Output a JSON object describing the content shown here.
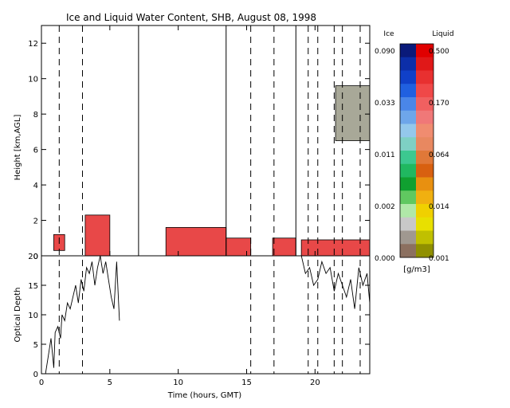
{
  "chart_data": [
    {
      "type": "heatmap",
      "title": "Ice and Liquid Water Content, SHB, August 08, 1998",
      "ylabel": "Height [km,AGL]",
      "ylim": [
        0,
        13
      ],
      "yticks": [
        "0",
        "2",
        "4",
        "6",
        "8",
        "10",
        "12"
      ],
      "xlim": [
        0,
        24
      ],
      "colorbars": {
        "ice_label": "Ice",
        "liquid_label": "Liquid",
        "unit": "[g/m3]",
        "ice_ticks": [
          "0.090",
          "0.033",
          "0.011",
          "0.002",
          "0.000"
        ],
        "liquid_ticks": [
          "0.500",
          "0.170",
          "0.064",
          "0.014",
          "0.001"
        ],
        "colors": [
          "#0a1a7a",
          "#0c2ea8",
          "#1040c8",
          "#2060e0",
          "#4a86e8",
          "#6ea6ea",
          "#94c8ec",
          "#7ed0c4",
          "#3cc890",
          "#20b860",
          "#10a030",
          "#60c860",
          "#b0e8a8",
          "#c8c8c8",
          "#a09890",
          "#8c7060"
        ],
        "liquid_colors": [
          "#e00000",
          "#e01818",
          "#e83030",
          "#f04848",
          "#f06060",
          "#f07878",
          "#f08c70",
          "#e88860",
          "#e07838",
          "#d86010",
          "#e89010",
          "#f0b010",
          "#f0d000",
          "#e8e000",
          "#c0c000",
          "#909000"
        ]
      },
      "series": [
        {
          "name": "liquid_layers",
          "color": "#e84848",
          "values": [
            [
              0.9,
              1.7,
              0.3,
              1.2
            ],
            [
              3.2,
              5.0,
              0.0,
              2.3
            ],
            [
              9.1,
              13.5,
              0.0,
              1.6
            ],
            [
              13.5,
              15.3,
              0.0,
              1.0
            ],
            [
              16.9,
              18.6,
              0.0,
              1.0
            ],
            [
              19.0,
              24,
              0.0,
              0.9
            ]
          ]
        },
        {
          "name": "ice_cloud",
          "color": "#a8a898",
          "values": [
            [
              21.5,
              24,
              6.5,
              9.6
            ]
          ]
        }
      ],
      "markers_x": [
        1.3,
        3.0,
        15.3,
        17.0,
        19.5,
        20.2,
        21.4,
        22.0,
        23.3
      ],
      "solid_markers_x": [
        7.1,
        13.5,
        18.6
      ]
    },
    {
      "type": "line",
      "xlabel": "Time (hours, GMT)",
      "ylabel": "Optical Depth",
      "xticks": [
        "0",
        "5",
        "10",
        "15",
        "20"
      ],
      "yticks": [
        "0",
        "5",
        "10",
        "15",
        "20"
      ],
      "xlim": [
        0,
        24
      ],
      "ylim": [
        0,
        20
      ],
      "series": [
        {
          "name": "optical_depth",
          "x": [
            0.3,
            0.5,
            0.7,
            0.9,
            1.0,
            1.2,
            1.4,
            1.5,
            1.7,
            1.9,
            2.1,
            2.3,
            2.5,
            2.7,
            2.9,
            3.1,
            3.3,
            3.5,
            3.7,
            3.9,
            4.1,
            4.3,
            4.5,
            4.7,
            4.9,
            5.1,
            5.3,
            5.5,
            5.7,
            19.0,
            19.3,
            19.6,
            19.9,
            20.2,
            20.5,
            20.8,
            21.1,
            21.4,
            21.7,
            22.0,
            22.3,
            22.6,
            22.9,
            23.2,
            23.5,
            23.8,
            24.0
          ],
          "y": [
            0,
            3,
            6,
            1,
            7,
            8,
            6,
            10,
            9,
            12,
            11,
            13,
            15,
            12,
            16,
            14,
            18,
            17,
            19,
            15,
            18,
            20,
            17,
            19,
            16,
            13,
            11,
            19,
            9,
            20,
            17,
            18,
            15,
            16,
            19,
            17,
            18,
            14,
            17,
            15,
            13,
            16,
            11,
            18,
            15,
            17,
            12
          ]
        }
      ],
      "markers_x": [
        1.3,
        3.0,
        15.3,
        17.0,
        19.5,
        20.2,
        21.4,
        22.0,
        23.3
      ],
      "solid_markers_x": [
        7.1,
        13.5,
        18.6
      ]
    }
  ]
}
